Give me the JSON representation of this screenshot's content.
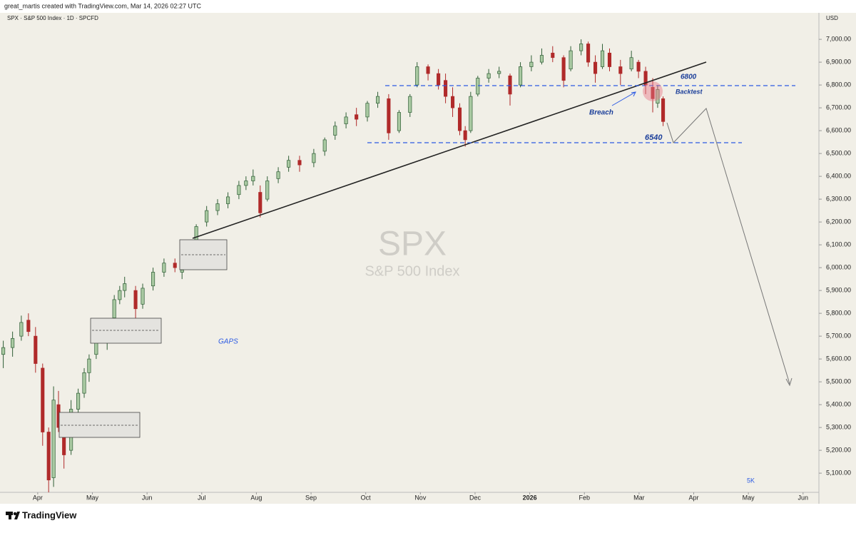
{
  "header": {
    "attribution": "great_martis created with TradingView.com, Mar 14, 2026 02:27 UTC",
    "symbol": "SPX · S&P 500 Index · 1D · SPCFD",
    "currency": "USD"
  },
  "chart_data": {
    "type": "candlestick",
    "title": "SPX",
    "subtitle": "S&P 500 Index",
    "up_color": "#a9c9a2",
    "up_edge": "#2f5e36",
    "down_color": "#b02a2a",
    "x": [
      -0.63,
      -0.46,
      -0.3,
      -0.17,
      -0.04,
      0.09,
      0.2,
      0.29,
      0.38,
      0.48,
      0.61,
      0.74,
      0.85,
      0.94,
      1.07,
      1.27,
      1.4,
      1.5,
      1.59,
      1.79,
      1.92,
      2.11,
      2.31,
      2.51,
      2.64,
      2.77,
      2.9,
      3.09,
      3.29,
      3.48,
      3.68,
      3.81,
      3.94,
      4.07,
      4.2,
      4.4,
      4.59,
      4.79,
      5.05,
      5.25,
      5.44,
      5.64,
      5.83,
      6.03,
      6.22,
      6.42,
      6.61,
      6.81,
      6.94,
      7.14,
      7.33,
      7.46,
      7.59,
      7.72,
      7.82,
      7.92,
      8.05,
      8.25,
      8.44,
      8.64,
      8.83,
      9.03,
      9.22,
      9.42,
      9.62,
      9.75,
      9.94,
      10.07,
      10.2,
      10.33,
      10.46,
      10.66,
      10.86,
      10.99,
      11.12,
      11.25,
      11.34,
      11.44
    ],
    "ohlc": [
      [
        5620,
        5680,
        5560,
        5650
      ],
      [
        5650,
        5720,
        5610,
        5690
      ],
      [
        5700,
        5790,
        5680,
        5760
      ],
      [
        5770,
        5800,
        5700,
        5720
      ],
      [
        5700,
        5740,
        5540,
        5580
      ],
      [
        5560,
        5580,
        5220,
        5280
      ],
      [
        5280,
        5300,
        5000,
        5070
      ],
      [
        5080,
        5480,
        5040,
        5420
      ],
      [
        5400,
        5460,
        5280,
        5300
      ],
      [
        5300,
        5360,
        5120,
        5180
      ],
      [
        5200,
        5420,
        5180,
        5380
      ],
      [
        5380,
        5470,
        5350,
        5450
      ],
      [
        5450,
        5560,
        5430,
        5540
      ],
      [
        5540,
        5620,
        5500,
        5600
      ],
      [
        5620,
        5720,
        5600,
        5700
      ],
      [
        5680,
        5730,
        5640,
        5700
      ],
      [
        5780,
        5880,
        5760,
        5860
      ],
      [
        5860,
        5920,
        5840,
        5900
      ],
      [
        5900,
        5960,
        5870,
        5930
      ],
      [
        5900,
        5920,
        5770,
        5820
      ],
      [
        5840,
        5930,
        5820,
        5910
      ],
      [
        5920,
        6000,
        5900,
        5980
      ],
      [
        5980,
        6040,
        5960,
        6020
      ],
      [
        6020,
        6040,
        5980,
        6000
      ],
      [
        5980,
        6010,
        5950,
        5990
      ],
      [
        6040,
        6100,
        6030,
        6090
      ],
      [
        6100,
        6190,
        6090,
        6180
      ],
      [
        6200,
        6270,
        6180,
        6250
      ],
      [
        6250,
        6300,
        6230,
        6280
      ],
      [
        6280,
        6330,
        6260,
        6310
      ],
      [
        6320,
        6380,
        6300,
        6360
      ],
      [
        6360,
        6400,
        6340,
        6380
      ],
      [
        6380,
        6430,
        6360,
        6400
      ],
      [
        6330,
        6360,
        6220,
        6240
      ],
      [
        6300,
        6400,
        6290,
        6380
      ],
      [
        6390,
        6440,
        6370,
        6420
      ],
      [
        6440,
        6490,
        6420,
        6470
      ],
      [
        6470,
        6490,
        6420,
        6450
      ],
      [
        6460,
        6520,
        6440,
        6500
      ],
      [
        6510,
        6570,
        6490,
        6560
      ],
      [
        6580,
        6640,
        6560,
        6620
      ],
      [
        6630,
        6680,
        6610,
        6660
      ],
      [
        6670,
        6700,
        6620,
        6650
      ],
      [
        6660,
        6730,
        6640,
        6720
      ],
      [
        6720,
        6770,
        6700,
        6750
      ],
      [
        6740,
        6760,
        6560,
        6590
      ],
      [
        6600,
        6690,
        6590,
        6680
      ],
      [
        6680,
        6760,
        6660,
        6750
      ],
      [
        6800,
        6900,
        6790,
        6880
      ],
      [
        6880,
        6890,
        6820,
        6850
      ],
      [
        6850,
        6870,
        6780,
        6800
      ],
      [
        6820,
        6850,
        6720,
        6750
      ],
      [
        6750,
        6790,
        6660,
        6700
      ],
      [
        6700,
        6720,
        6580,
        6600
      ],
      [
        6600,
        6620,
        6530,
        6560
      ],
      [
        6600,
        6770,
        6590,
        6750
      ],
      [
        6760,
        6840,
        6750,
        6830
      ],
      [
        6830,
        6870,
        6810,
        6850
      ],
      [
        6850,
        6880,
        6830,
        6860
      ],
      [
        6840,
        6850,
        6710,
        6760
      ],
      [
        6800,
        6900,
        6790,
        6880
      ],
      [
        6880,
        6930,
        6860,
        6900
      ],
      [
        6900,
        6960,
        6890,
        6930
      ],
      [
        6940,
        6970,
        6900,
        6920
      ],
      [
        6920,
        6930,
        6790,
        6820
      ],
      [
        6870,
        6970,
        6860,
        6950
      ],
      [
        6950,
        7000,
        6930,
        6980
      ],
      [
        6980,
        6990,
        6880,
        6900
      ],
      [
        6900,
        6930,
        6810,
        6850
      ],
      [
        6880,
        6980,
        6870,
        6950
      ],
      [
        6940,
        6960,
        6860,
        6880
      ],
      [
        6880,
        6910,
        6800,
        6850
      ],
      [
        6870,
        6950,
        6860,
        6920
      ],
      [
        6900,
        6910,
        6830,
        6860
      ],
      [
        6860,
        6880,
        6760,
        6800
      ],
      [
        6790,
        6830,
        6680,
        6740
      ],
      [
        6720,
        6800,
        6700,
        6780
      ],
      [
        6740,
        6750,
        6620,
        6640
      ]
    ],
    "xlim": [
      -0.69,
      14.29
    ],
    "xticks": [
      {
        "value": 0,
        "label": "Apr"
      },
      {
        "value": 1,
        "label": "May"
      },
      {
        "value": 2,
        "label": "Jun"
      },
      {
        "value": 3,
        "label": "Jul"
      },
      {
        "value": 4,
        "label": "Aug"
      },
      {
        "value": 5,
        "label": "Sep"
      },
      {
        "value": 6,
        "label": "Oct"
      },
      {
        "value": 7,
        "label": "Nov"
      },
      {
        "value": 8,
        "label": "Dec"
      },
      {
        "value": 9,
        "label": "2026"
      },
      {
        "value": 10,
        "label": "Feb"
      },
      {
        "value": 11,
        "label": "Mar"
      },
      {
        "value": 12,
        "label": "Apr"
      },
      {
        "value": 13,
        "label": "May"
      },
      {
        "value": 14,
        "label": "Jun"
      }
    ],
    "ylim": [
      5016,
      7116
    ],
    "yticks": [
      {
        "value": 5100,
        "label": "5,100.00"
      },
      {
        "value": 5200,
        "label": "5,200.00"
      },
      {
        "value": 5300,
        "label": "5,300.00"
      },
      {
        "value": 5400,
        "label": "5,400.00"
      },
      {
        "value": 5500,
        "label": "5,500.00"
      },
      {
        "value": 5600,
        "label": "5,600.00"
      },
      {
        "value": 5700,
        "label": "5,700.00"
      },
      {
        "value": 5800,
        "label": "5,800.00"
      },
      {
        "value": 5900,
        "label": "5,900.00"
      },
      {
        "value": 6000,
        "label": "6,000.00"
      },
      {
        "value": 6100,
        "label": "6,100.00"
      },
      {
        "value": 6200,
        "label": "6,200.00"
      },
      {
        "value": 6300,
        "label": "6,300.00"
      },
      {
        "value": 6400,
        "label": "6,400.00"
      },
      {
        "value": 6500,
        "label": "6,500.00"
      },
      {
        "value": 6600,
        "label": "6,600.00"
      },
      {
        "value": 6700,
        "label": "6,700.00"
      },
      {
        "value": 6800,
        "label": "6,800.00"
      },
      {
        "value": 6900,
        "label": "6,900.00"
      },
      {
        "value": 7000,
        "label": "7,000.00"
      }
    ],
    "annotations": [
      "6800",
      "Backtest",
      "Breach",
      "6540",
      "GAPS",
      "5K"
    ]
  },
  "footer": {
    "brand": "TradingView"
  }
}
